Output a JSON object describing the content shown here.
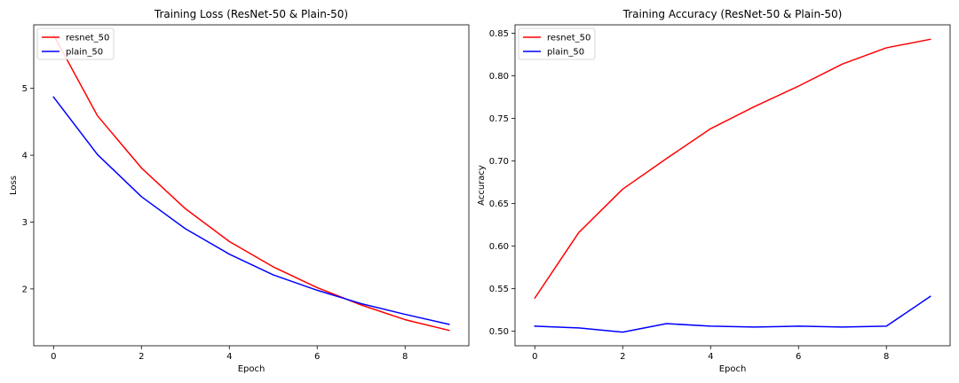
{
  "chart_data": [
    {
      "type": "line",
      "title": "Training Loss (ResNet-50 & Plain-50)",
      "xlabel": "Epoch",
      "ylabel": "Loss",
      "xlim": [
        -0.45,
        9.45
      ],
      "ylim": [
        1.15,
        5.95
      ],
      "xticks": [
        0,
        2,
        4,
        6,
        8
      ],
      "yticks": [
        2,
        3,
        4,
        5
      ],
      "grid": false,
      "legend_position": "top-left",
      "x": [
        0,
        1,
        2,
        3,
        4,
        5,
        6,
        7,
        8,
        9
      ],
      "series": [
        {
          "name": "resnet_50",
          "color": "#ff0000",
          "values": [
            5.8,
            4.59,
            3.81,
            3.2,
            2.71,
            2.33,
            2.02,
            1.76,
            1.54,
            1.38
          ]
        },
        {
          "name": "plain_50",
          "color": "#0000ff",
          "values": [
            4.87,
            4.01,
            3.38,
            2.9,
            2.52,
            2.21,
            1.98,
            1.78,
            1.62,
            1.47
          ]
        }
      ]
    },
    {
      "type": "line",
      "title": "Training Accuracy (ResNet-50 & Plain-50)",
      "xlabel": "Epoch",
      "ylabel": "Accuracy",
      "xlim": [
        -0.45,
        9.45
      ],
      "ylim": [
        0.483,
        0.86
      ],
      "xticks": [
        0,
        2,
        4,
        6,
        8
      ],
      "yticks": [
        0.5,
        0.55,
        0.6,
        0.65,
        0.7,
        0.75,
        0.8,
        0.85
      ],
      "ytick_labels": [
        "0.50",
        "0.55",
        "0.60",
        "0.65",
        "0.70",
        "0.75",
        "0.80",
        "0.85"
      ],
      "grid": false,
      "legend_position": "top-left",
      "x": [
        0,
        1,
        2,
        3,
        4,
        5,
        6,
        7,
        8,
        9
      ],
      "series": [
        {
          "name": "resnet_50",
          "color": "#ff0000",
          "values": [
            0.539,
            0.616,
            0.667,
            0.703,
            0.738,
            0.764,
            0.788,
            0.814,
            0.833,
            0.843
          ]
        },
        {
          "name": "plain_50",
          "color": "#0000ff",
          "values": [
            0.506,
            0.504,
            0.499,
            0.509,
            0.506,
            0.505,
            0.506,
            0.505,
            0.506,
            0.541
          ]
        }
      ]
    }
  ]
}
